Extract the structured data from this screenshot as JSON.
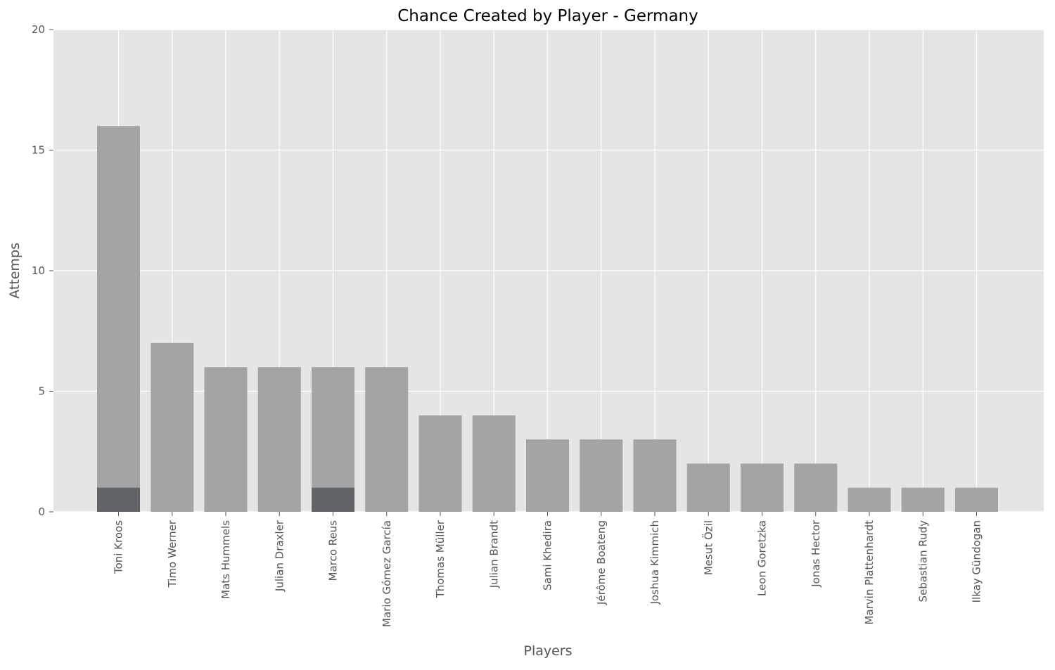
{
  "chart_data": {
    "type": "bar",
    "title": "Chance Created by Player - Germany",
    "xlabel": "Players",
    "ylabel": "Attemps",
    "ylim": [
      0,
      20
    ],
    "yticks": [
      0,
      5,
      10,
      15,
      20
    ],
    "grid": true,
    "categories": [
      "Toni Kroos",
      "Timo Werner",
      "Mats Hummels",
      "Julian Draxler",
      "Marco Reus",
      "Mario Gómez García",
      "Thomas Müller",
      "Julian Brandt",
      "Sami Khedira",
      "Jérôme Boateng",
      "Joshua Kimmich",
      "Mesut Özil",
      "Leon Goretzka",
      "Jonas Hector",
      "Marvin Plattenhardt",
      "Sebastian Rudy",
      "Ilkay Gündogan"
    ],
    "series": [
      {
        "values": [
          16,
          7,
          6,
          6,
          6,
          6,
          4,
          4,
          3,
          3,
          3,
          2,
          2,
          2,
          1,
          1,
          1
        ],
        "color": "#a3a4a6"
      },
      {
        "values": [
          1,
          0,
          0,
          0,
          1,
          0,
          0,
          0,
          0,
          0,
          0,
          0,
          0,
          0,
          0,
          0,
          0
        ],
        "color": "#606368"
      }
    ],
    "colors": {
      "plot_background": "#e5e5e5",
      "grid": "#ffffff",
      "text": "#555555",
      "title": "#000000"
    }
  }
}
